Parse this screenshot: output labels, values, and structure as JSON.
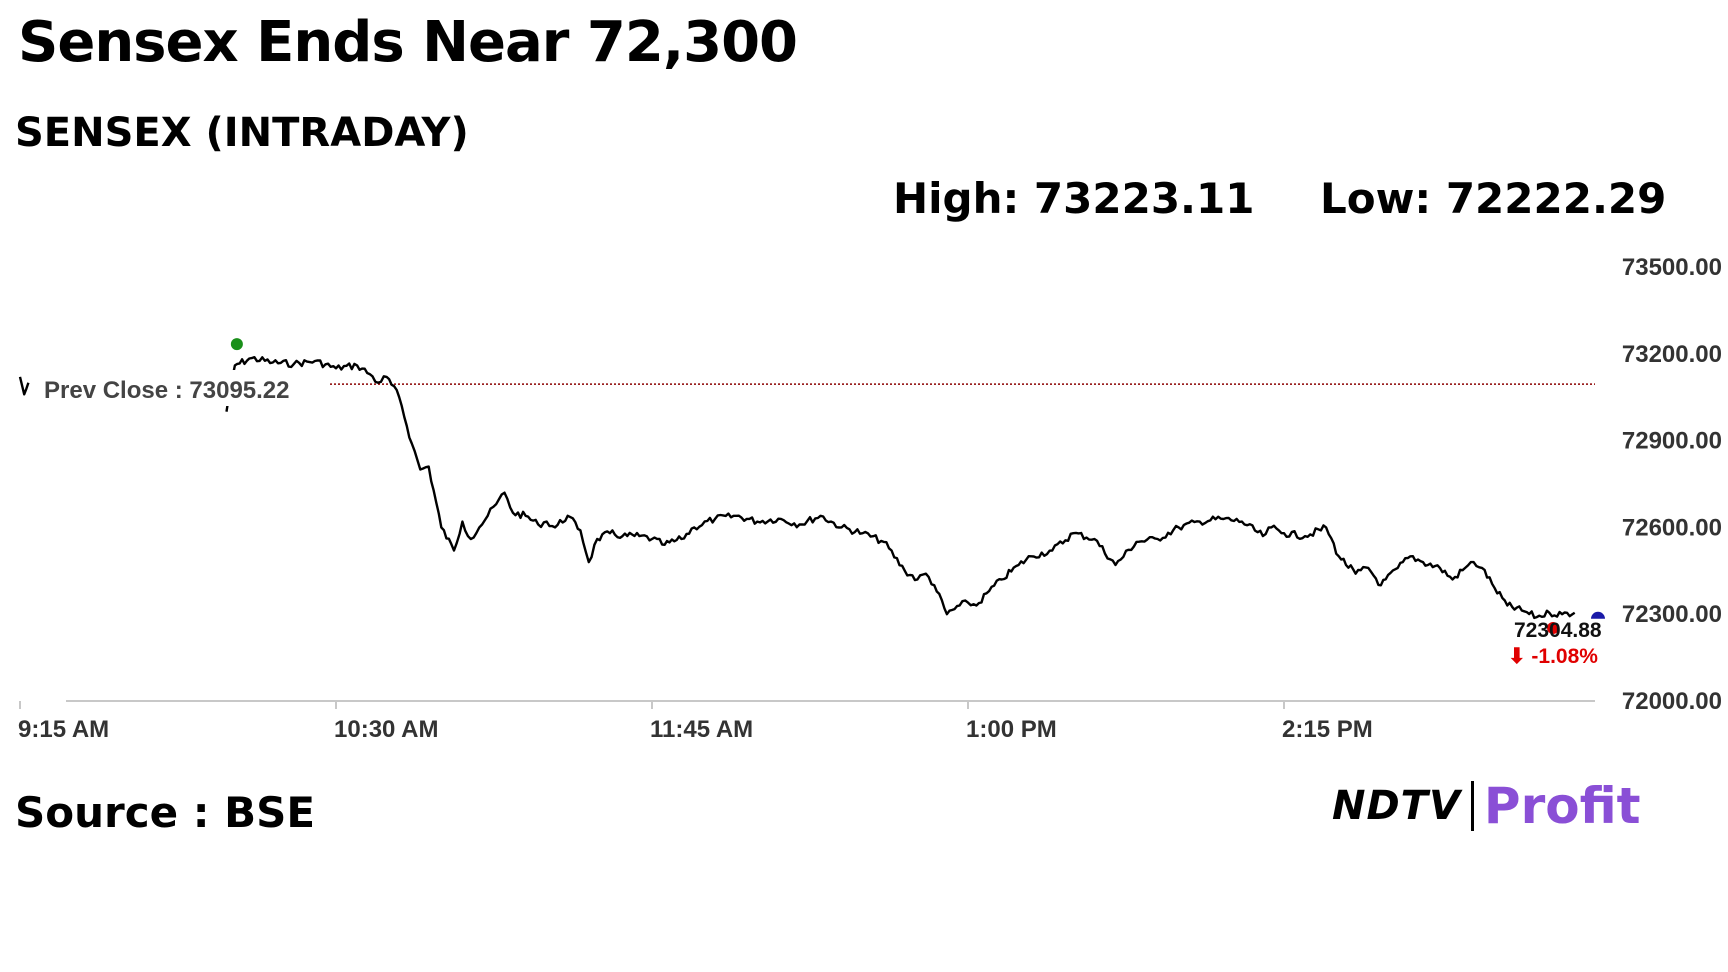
{
  "headline": "Sensex Ends Near 72,300",
  "subtitle": "SENSEX (INTRADAY)",
  "high_label": "High: 73223.11",
  "low_label": "Low: 72222.29",
  "source": "Source : BSE",
  "logo": {
    "ndtv": "NDTV",
    "profit": "Profit"
  },
  "colors": {
    "line": "#000000",
    "prev_close": "#8b0000",
    "high_dot": "#1a8f1a",
    "low_dot": "#e00000",
    "current_dot": "#1a1aa8",
    "change": "#e00000",
    "profit_logo": "#8a4fd6"
  },
  "chart_data": {
    "type": "line",
    "title": "SENSEX (INTRADAY)",
    "xlabel": "",
    "ylabel": "",
    "x_ticks": [
      "9:15 AM",
      "10:30 AM",
      "11:45 AM",
      "1:00 PM",
      "2:15 PM"
    ],
    "y_ticks": [
      "73500.00",
      "73200.00",
      "72900.00",
      "72600.00",
      "72300.00",
      "72000.00"
    ],
    "ylim": [
      72000,
      73500
    ],
    "xlim": [
      "09:15",
      "15:30"
    ],
    "grid": false,
    "prev_close": 73095.22,
    "prev_close_label": "Prev Close : 73095.22",
    "high": 73223.11,
    "low": 72222.29,
    "last_value_label": "72304.88",
    "change_label": "⬇ -1.08%",
    "series": [
      {
        "x": [
          "09:15",
          "09:16",
          "09:17",
          "10:04",
          "10:06",
          "10:10",
          "10:15",
          "10:20",
          "10:25",
          "10:30",
          "10:35",
          "10:38",
          "10:40",
          "10:42",
          "10:45",
          "10:48",
          "10:50",
          "10:52",
          "10:55",
          "10:58",
          "11:00",
          "11:02",
          "11:04",
          "11:06",
          "11:08",
          "11:10",
          "11:12",
          "11:15",
          "11:18",
          "11:20",
          "11:22",
          "11:25",
          "11:28",
          "11:30",
          "11:32",
          "11:35",
          "11:38",
          "11:42",
          "11:45",
          "11:48",
          "11:52",
          "11:55",
          "12:00",
          "12:05",
          "12:10",
          "12:15",
          "12:20",
          "12:25",
          "12:30",
          "12:35",
          "12:40",
          "12:45",
          "12:48",
          "12:50",
          "12:52",
          "12:55",
          "12:58",
          "13:00",
          "13:02",
          "13:05",
          "13:08",
          "13:12",
          "13:15",
          "13:20",
          "13:25",
          "13:30",
          "13:35",
          "13:40",
          "13:45",
          "13:50",
          "13:55",
          "14:00",
          "14:05",
          "14:10",
          "14:12",
          "14:15",
          "14:20",
          "14:25",
          "14:28",
          "14:32",
          "14:35",
          "14:38",
          "14:42",
          "14:45",
          "14:48",
          "14:52",
          "14:55",
          "14:58",
          "15:00",
          "15:02",
          "15:05",
          "15:08",
          "15:12",
          "15:15",
          "15:18",
          "15:21",
          "15:24"
        ],
        "y": [
          73120,
          73060,
          73100,
          73000,
          73160,
          73185,
          73170,
          73165,
          73175,
          73150,
          73160,
          73130,
          73100,
          73120,
          73050,
          72890,
          72800,
          72810,
          72600,
          72520,
          72620,
          72560,
          72600,
          72640,
          72680,
          72720,
          72650,
          72640,
          72610,
          72620,
          72600,
          72640,
          72590,
          72480,
          72560,
          72580,
          72570,
          72570,
          72560,
          72540,
          72560,
          72600,
          72630,
          72640,
          72620,
          72630,
          72610,
          72640,
          72600,
          72580,
          72550,
          72450,
          72420,
          72440,
          72400,
          72300,
          72330,
          72340,
          72330,
          72380,
          72420,
          72470,
          72500,
          72520,
          72580,
          72560,
          72470,
          72550,
          72560,
          72600,
          72620,
          72630,
          72620,
          72570,
          72600,
          72580,
          72570,
          72600,
          72500,
          72440,
          72460,
          72400,
          72460,
          72500,
          72480,
          72460,
          72420,
          72460,
          72480,
          72460,
          72390,
          72330,
          72310,
          72290,
          72305,
          72300,
          72304.88
        ]
      }
    ]
  }
}
